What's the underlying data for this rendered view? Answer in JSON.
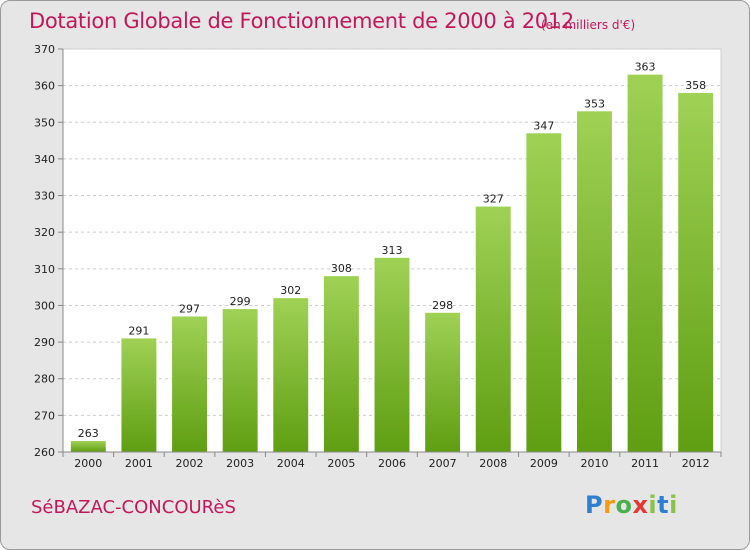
{
  "header": {
    "title": "Dotation Globale de Fonctionnement de 2000 à 2012",
    "subtitle": "(en milliers d'€)"
  },
  "footer": {
    "commune": "SéBAZAC-CONCOURèS",
    "logo_letters": [
      "P",
      "r",
      "o",
      "x",
      "i",
      "t",
      "i"
    ],
    "logo_colors": [
      "#2e7fd1",
      "#f39c12",
      "#4caf50",
      "#e53935",
      "#8bc34a",
      "#2e7fd1",
      "#8bc34a"
    ]
  },
  "colors": {
    "title": "#c2185b",
    "bar_top": "#9fd155",
    "bar_bottom": "#5f9e12",
    "plot_bg": "#ffffff",
    "frame_bg": "#e6e6e6"
  },
  "chart_data": {
    "type": "bar",
    "categories": [
      "2000",
      "2001",
      "2002",
      "2003",
      "2004",
      "2005",
      "2006",
      "2007",
      "2008",
      "2009",
      "2010",
      "2011",
      "2012"
    ],
    "values": [
      263,
      291,
      297,
      299,
      302,
      308,
      313,
      298,
      327,
      347,
      353,
      363,
      358
    ],
    "title": "Dotation Globale de Fonctionnement de 2000 à 2012",
    "subtitle": "(en milliers d'€)",
    "ylim": [
      260,
      370
    ],
    "yticks": [
      260,
      270,
      280,
      290,
      300,
      310,
      320,
      330,
      340,
      350,
      360,
      370
    ],
    "grid": true,
    "legend": "none",
    "data_labels": true
  }
}
